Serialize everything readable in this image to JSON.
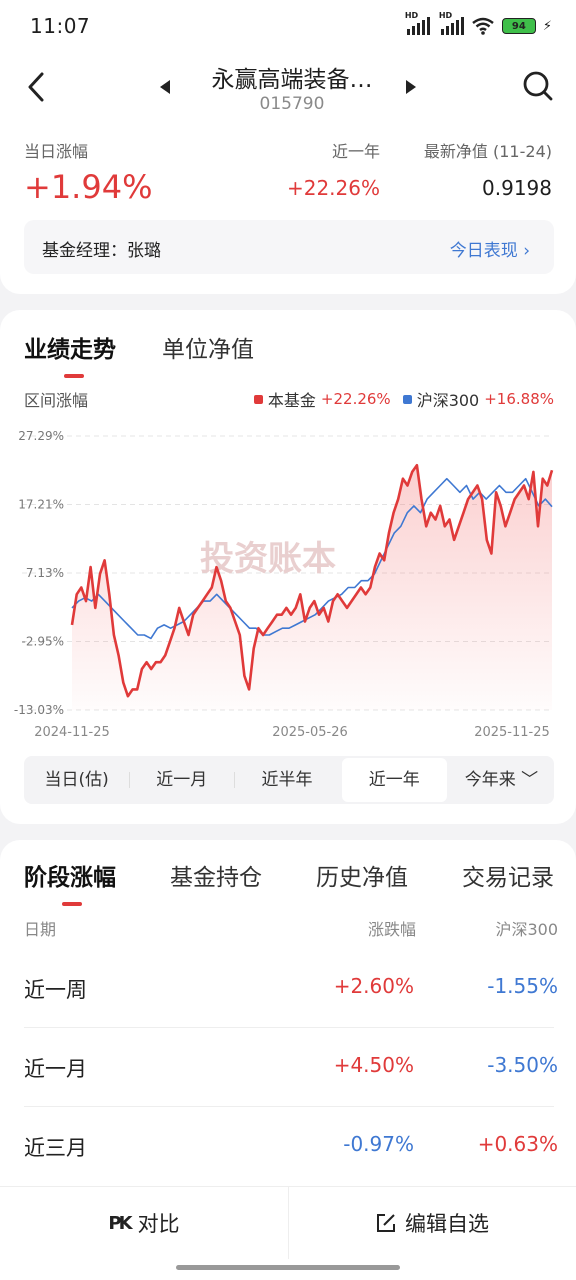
{
  "status_bar": {
    "time": "11:07",
    "battery": "94"
  },
  "header": {
    "fund_name": "永赢高端装备…",
    "fund_code": "015790"
  },
  "metrics": {
    "daily_label": "当日涨幅",
    "daily_value": "+1.94%",
    "year_label": "近一年",
    "year_value": "+22.26%",
    "nav_label": "最新净值 (11-24)",
    "nav_value": "0.9198"
  },
  "manager": {
    "text": "基金经理：张璐",
    "link": "今日表现 ›"
  },
  "chart_tabs": [
    "业绩走势",
    "单位净值"
  ],
  "chart_range_label": "区间涨幅",
  "legend": [
    {
      "name": "本基金",
      "value": "+22.26%",
      "color": "#e03a3a"
    },
    {
      "name": "沪深300",
      "value": "+16.88%",
      "color": "#3f78d2"
    }
  ],
  "watermark": "投资账本",
  "chart_data": {
    "type": "line",
    "y_ticks": [
      "27.29%",
      "17.21%",
      "7.13%",
      "-2.95%",
      "-13.03%"
    ],
    "ylim": [
      -13.03,
      27.29
    ],
    "x_labels": [
      "2024-11-25",
      "2025-05-26",
      "2025-11-25"
    ],
    "series": [
      {
        "name": "本基金",
        "color": "#e03a3a",
        "values": [
          -0.5,
          4,
          5,
          3,
          8,
          2,
          7,
          9,
          4,
          -2,
          -5,
          -9,
          -11,
          -10,
          -10,
          -7,
          -6,
          -7,
          -6,
          -6,
          -5,
          -3,
          -1,
          2,
          0,
          -2,
          1,
          2,
          3,
          4,
          5,
          8,
          6,
          3,
          2,
          0,
          -2,
          -8,
          -10,
          -4,
          -1,
          -2,
          -1,
          0,
          1,
          1,
          2,
          1,
          2,
          4,
          0,
          2,
          3,
          1,
          2,
          0,
          3,
          4,
          3,
          2,
          3,
          4,
          5,
          4,
          5,
          8,
          10,
          9,
          13,
          16,
          18,
          21,
          20,
          22,
          23,
          18,
          14,
          16,
          15,
          17,
          14,
          15,
          12,
          14,
          16,
          18,
          19,
          20,
          18,
          12,
          10,
          19,
          17,
          14,
          16,
          18,
          19,
          20,
          18,
          22,
          14,
          21,
          20,
          22.26
        ]
      },
      {
        "name": "沪深300",
        "color": "#3f78d2",
        "values": [
          2,
          3,
          3.5,
          3,
          4,
          3,
          2,
          1,
          0,
          -1,
          -2,
          -2,
          -2.5,
          -1,
          -0.5,
          -1,
          -0.5,
          0,
          1,
          2,
          3,
          3,
          4,
          3,
          2,
          1,
          0,
          -1,
          -1,
          -2,
          -2,
          -1.5,
          -1,
          -1,
          -0.5,
          0,
          0.5,
          1,
          2,
          3,
          3.5,
          4,
          5,
          5,
          6,
          6,
          7,
          9,
          11,
          13,
          14,
          16,
          17,
          16,
          18,
          19,
          20,
          21,
          20,
          19,
          20,
          18,
          19,
          18,
          19,
          20,
          19,
          19,
          20,
          21,
          19,
          17,
          18,
          16.88
        ]
      }
    ]
  },
  "periods": [
    "当日(估)",
    "近一月",
    "近半年",
    "近一年",
    "今年来 ﹀"
  ],
  "perf_tabs": [
    "阶段涨幅",
    "基金持仓",
    "历史净值",
    "交易记录"
  ],
  "table": {
    "headers": [
      "日期",
      "涨跌幅",
      "沪深300"
    ],
    "rows": [
      {
        "name": "近一周",
        "change": "+2.60%",
        "hs300": "-1.55%"
      },
      {
        "name": "近一月",
        "change": "+4.50%",
        "hs300": "-3.50%"
      },
      {
        "name": "近三月",
        "change": "-0.97%",
        "hs300": "+0.63%"
      }
    ]
  },
  "bottom_bar": {
    "compare": "对比",
    "pk_icon": "PK",
    "edit": "编辑自选"
  }
}
